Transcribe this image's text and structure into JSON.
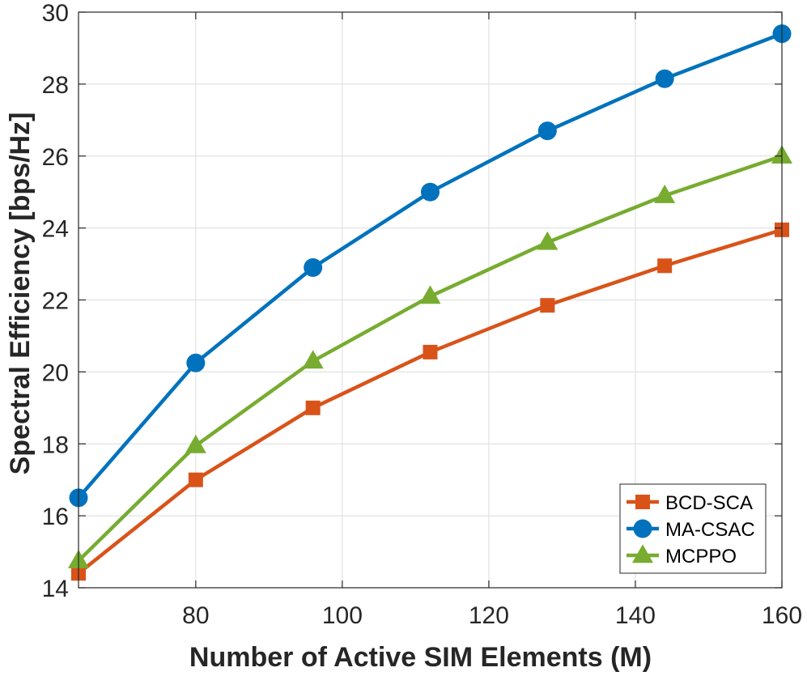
{
  "chart_data": {
    "type": "line",
    "title": "",
    "xlabel": "Number of Active SIM Elements (M)",
    "ylabel": "Spectral Efficiency [bps/Hz]",
    "xlim": [
      64,
      160
    ],
    "ylim": [
      14,
      30
    ],
    "xticks": [
      80,
      100,
      120,
      140,
      160
    ],
    "yticks": [
      14,
      16,
      18,
      20,
      22,
      24,
      26,
      28,
      30
    ],
    "grid": true,
    "legend_position": "bottom-right",
    "x": [
      64,
      80,
      96,
      112,
      128,
      144,
      160
    ],
    "series": [
      {
        "name": "BCD-SCA",
        "marker": "square",
        "color": "#D95319",
        "values": [
          14.4,
          17.0,
          19.0,
          20.55,
          21.85,
          22.95,
          23.95
        ]
      },
      {
        "name": "MA-CSAC",
        "marker": "circle",
        "color": "#0072BD",
        "values": [
          16.5,
          20.25,
          22.9,
          25.0,
          26.7,
          28.15,
          29.4
        ]
      },
      {
        "name": "MCPPO",
        "marker": "triangle",
        "color": "#77AC30",
        "values": [
          14.75,
          17.95,
          20.3,
          22.1,
          23.6,
          24.9,
          26.0
        ]
      }
    ]
  }
}
